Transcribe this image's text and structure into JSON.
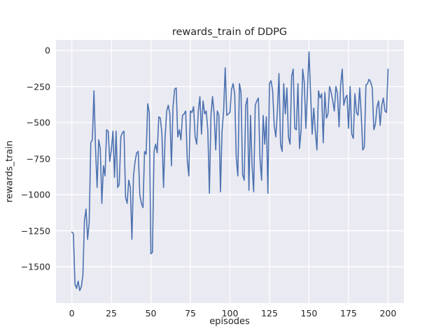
{
  "figure": {
    "background": "#ffffff"
  },
  "chart_data": {
    "type": "line",
    "title": "rewards_train of DDPG",
    "xlabel": "episodes",
    "ylabel": "rewards_train",
    "xlim": [
      -10,
      210
    ],
    "ylim": [
      -1752,
      73
    ],
    "xticks": [
      0,
      25,
      50,
      75,
      100,
      125,
      150,
      175,
      200
    ],
    "yticks": [
      0,
      -250,
      -500,
      -750,
      -1000,
      -1250,
      -1500
    ],
    "grid": true,
    "legend": "none",
    "style": {
      "line_color": "#4c72b0",
      "plot_bg": "#eaeaf2",
      "grid_color": "#ffffff",
      "text_color": "#262626"
    },
    "x_description": "episode index 0..200, step 1",
    "values": [
      -1260,
      -1270,
      -1620,
      -1650,
      -1600,
      -1665,
      -1640,
      -1560,
      -1180,
      -1100,
      -1310,
      -1190,
      -640,
      -620,
      -280,
      -680,
      -950,
      -620,
      -680,
      -1060,
      -800,
      -870,
      -550,
      -560,
      -770,
      -690,
      -560,
      -880,
      -560,
      -950,
      -930,
      -600,
      -570,
      -560,
      -1020,
      -1060,
      -900,
      -950,
      -1310,
      -870,
      -770,
      -710,
      -700,
      -1000,
      -1060,
      -1090,
      -700,
      -720,
      -370,
      -430,
      -1410,
      -1400,
      -700,
      -650,
      -710,
      -460,
      -470,
      -580,
      -950,
      -600,
      -420,
      -380,
      -440,
      -800,
      -390,
      -270,
      -260,
      -600,
      -550,
      -620,
      -450,
      -440,
      -420,
      -760,
      -870,
      -420,
      -430,
      -390,
      -600,
      -650,
      -420,
      -320,
      -580,
      -350,
      -440,
      -420,
      -550,
      -990,
      -450,
      -320,
      -440,
      -690,
      -420,
      -450,
      -980,
      -560,
      -420,
      -120,
      -450,
      -440,
      -430,
      -270,
      -230,
      -300,
      -750,
      -870,
      -230,
      -290,
      -860,
      -900,
      -380,
      -330,
      -970,
      -450,
      -800,
      -980,
      -380,
      -350,
      -330,
      -750,
      -900,
      -450,
      -650,
      -460,
      -990,
      -230,
      -210,
      -280,
      -520,
      -600,
      -420,
      -160,
      -650,
      -700,
      -230,
      -440,
      -260,
      -600,
      -650,
      -180,
      -130,
      -540,
      -550,
      -230,
      -680,
      -550,
      -130,
      -220,
      -540,
      -280,
      -10,
      -300,
      -580,
      -400,
      -560,
      -690,
      -280,
      -330,
      -300,
      -640,
      -290,
      -470,
      -440,
      -250,
      -290,
      -350,
      -420,
      -250,
      -300,
      -530,
      -240,
      -130,
      -380,
      -330,
      -310,
      -540,
      -250,
      -580,
      -610,
      -300,
      -430,
      -450,
      -260,
      -440,
      -690,
      -670,
      -240,
      -230,
      -200,
      -220,
      -260,
      -550,
      -510,
      -390,
      -350,
      -520,
      -380,
      -330,
      -420,
      -430,
      -130
    ]
  }
}
